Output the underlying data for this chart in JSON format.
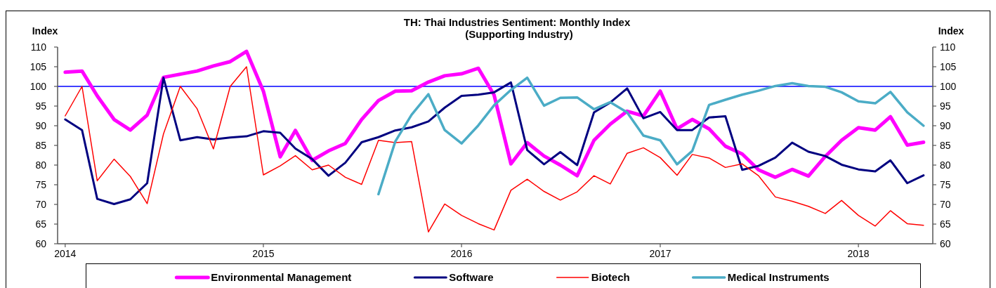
{
  "chart_data": {
    "type": "line",
    "title": "TH: Thai Industries Sentiment: Monthly Index",
    "subtitle": "(Supporting Industry)",
    "ylabel": "Index",
    "y2label": "Index",
    "x": [
      "2014-01",
      "2014-02",
      "2014-03",
      "2014-04",
      "2014-05",
      "2014-06",
      "2014-07",
      "2014-08",
      "2014-09",
      "2014-10",
      "2014-11",
      "2014-12",
      "2015-01",
      "2015-02",
      "2015-03",
      "2015-04",
      "2015-05",
      "2015-06",
      "2015-07",
      "2015-08",
      "2015-09",
      "2015-10",
      "2015-11",
      "2015-12",
      "2016-01",
      "2016-02",
      "2016-03",
      "2016-04",
      "2016-05",
      "2016-06",
      "2016-07",
      "2016-08",
      "2016-09",
      "2016-10",
      "2016-11",
      "2016-12",
      "2017-01",
      "2017-02",
      "2017-03",
      "2017-04",
      "2017-05",
      "2017-06",
      "2017-07",
      "2017-08",
      "2017-09",
      "2017-10",
      "2017-11",
      "2017-12",
      "2018-01",
      "2018-02",
      "2018-03",
      "2018-04",
      "2018-05"
    ],
    "xlim": [
      "2013-12-18",
      "2018-05-18"
    ],
    "xticks": [
      "2014",
      "2015",
      "2016",
      "2017",
      "2018"
    ],
    "ylim": [
      60,
      110
    ],
    "yticks": [
      60,
      65,
      70,
      75,
      80,
      85,
      90,
      95,
      100,
      105,
      110
    ],
    "y2lim": [
      60,
      110
    ],
    "y2ticks": [
      60,
      65,
      70,
      75,
      80,
      85,
      90,
      95,
      100,
      105,
      110
    ],
    "series": [
      {
        "name": "Environmental Management",
        "color": "#ff00ff",
        "values": [
          103.6,
          103.9,
          97.6,
          91.6,
          88.9,
          92.7,
          102.3,
          103.1,
          103.9,
          105.2,
          106.3,
          108.9,
          98.8,
          82.1,
          88.8,
          81.2,
          83.6,
          85.5,
          91.6,
          96.4,
          98.8,
          98.9,
          101.1,
          102.7,
          103.2,
          104.6,
          97.8,
          80.3,
          85.7,
          82.3,
          80.0,
          77.3,
          86.3,
          90.4,
          93.7,
          92.5,
          98.8,
          89.2,
          91.6,
          89.2,
          84.8,
          82.8,
          78.8,
          76.9,
          78.9,
          77.2,
          82.2,
          86.3,
          89.5,
          88.9,
          92.3,
          85.1,
          85.8
        ]
      },
      {
        "name": "Software",
        "color": "#000080",
        "values": [
          91.6,
          88.9,
          71.4,
          70.1,
          71.3,
          75.4,
          102.2,
          86.3,
          87.1,
          86.5,
          87.0,
          87.3,
          88.6,
          88.2,
          84.2,
          81.5,
          77.3,
          80.6,
          85.8,
          87.1,
          88.8,
          89.6,
          91.1,
          94.6,
          97.6,
          97.9,
          98.5,
          101.0,
          83.8,
          80.2,
          83.3,
          80.0,
          93.4,
          95.9,
          99.5,
          91.9,
          93.5,
          88.9,
          88.9,
          92.1,
          92.4,
          78.8,
          79.8,
          81.9,
          85.7,
          83.4,
          82.3,
          80.1,
          78.9,
          78.4,
          81.2,
          75.4,
          77.4
        ]
      },
      {
        "name": "Biotech",
        "color": "#ff0000",
        "values": [
          92.5,
          100,
          76.0,
          81.5,
          77.1,
          70.2,
          87.9,
          100,
          94.3,
          84.1,
          100,
          105.0,
          77.5,
          79.8,
          82.4,
          78.8,
          80.0,
          76.9,
          75.1,
          86.3,
          85.7,
          86.0,
          63.0,
          70.1,
          67.2,
          65.1,
          63.5,
          73.6,
          76.4,
          73.3,
          71.1,
          73.2,
          77.3,
          75.2,
          83.0,
          84.4,
          81.9,
          77.4,
          82.7,
          81.8,
          79.4,
          80.3,
          77.3,
          71.9,
          70.8,
          69.5,
          67.7,
          71.0,
          67.2,
          64.5,
          68.4,
          65.1,
          64.7
        ]
      },
      {
        "name": "Medical Instruments",
        "color": "#4bacc6",
        "values": [
          null,
          null,
          null,
          null,
          null,
          null,
          null,
          null,
          null,
          null,
          null,
          null,
          null,
          null,
          null,
          null,
          null,
          null,
          null,
          72.6,
          86.0,
          92.8,
          98.0,
          88.9,
          85.5,
          90.1,
          95.2,
          99.1,
          102.2,
          95.1,
          97.1,
          97.2,
          94.2,
          96.0,
          93.4,
          87.5,
          86.3,
          80.2,
          83.6,
          95.3,
          96.6,
          97.9,
          98.9,
          100.1,
          100.8,
          100.1,
          99.9,
          98.5,
          96.2,
          95.7,
          98.6,
          93.4,
          90.0
        ]
      }
    ],
    "ref_lines": [
      {
        "axis": "y",
        "value": 100,
        "color": "#0000ff"
      }
    ],
    "legend": "bottom"
  }
}
